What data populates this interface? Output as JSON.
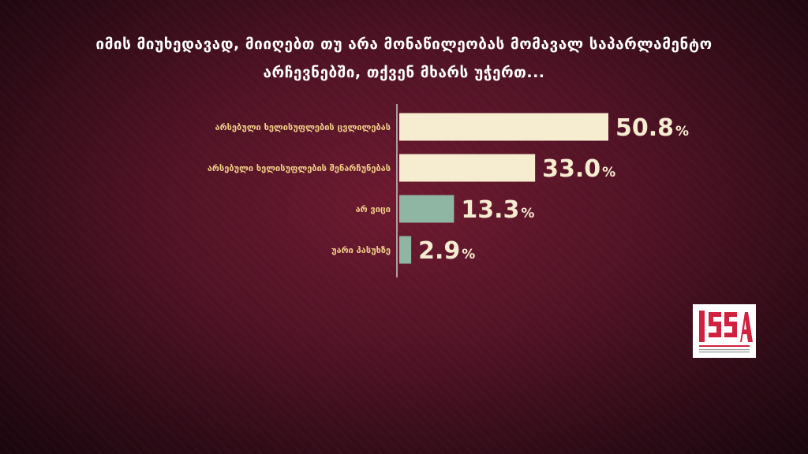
{
  "title_lines": [
    "იმის მიუხედავად, მიიღებთ თუ არა მონაწილეობას მომავალ საპარლამენტო",
    "არჩევნებში, თქვენ მხარს უჭერთ..."
  ],
  "chart_data": {
    "type": "bar",
    "orientation": "horizontal",
    "title": "იმის მიუხედავად, მიიღებთ თუ არა მონაწილეობას მომავალ საპარლამენტო არჩევნებში, თქვენ მხარს უჭერთ...",
    "categories": [
      "არსებული ხელისუფლების ცვლილებას",
      "არსებული ხელისუფლების შენარჩუნებას",
      "არ ვიცი",
      "უარი პასუხზე"
    ],
    "values": [
      50.8,
      33.0,
      13.3,
      2.9
    ],
    "value_labels": [
      "50.8",
      "33.0",
      "13.3",
      "2.9"
    ],
    "unit": "%",
    "xlim": [
      0,
      50.8
    ],
    "bar_colors": [
      "#f6ecd0",
      "#f6ecd0",
      "#8fb5a3",
      "#8fb5a3"
    ],
    "label_color": "#f2d08a",
    "value_color": "#f6ecd0",
    "grid": false,
    "legend": "none"
  },
  "logo": {
    "text": "ISSA",
    "accent_color": "#d0213f"
  },
  "colors": {
    "background": "#4e1224",
    "axis": "#c8c8c8"
  }
}
